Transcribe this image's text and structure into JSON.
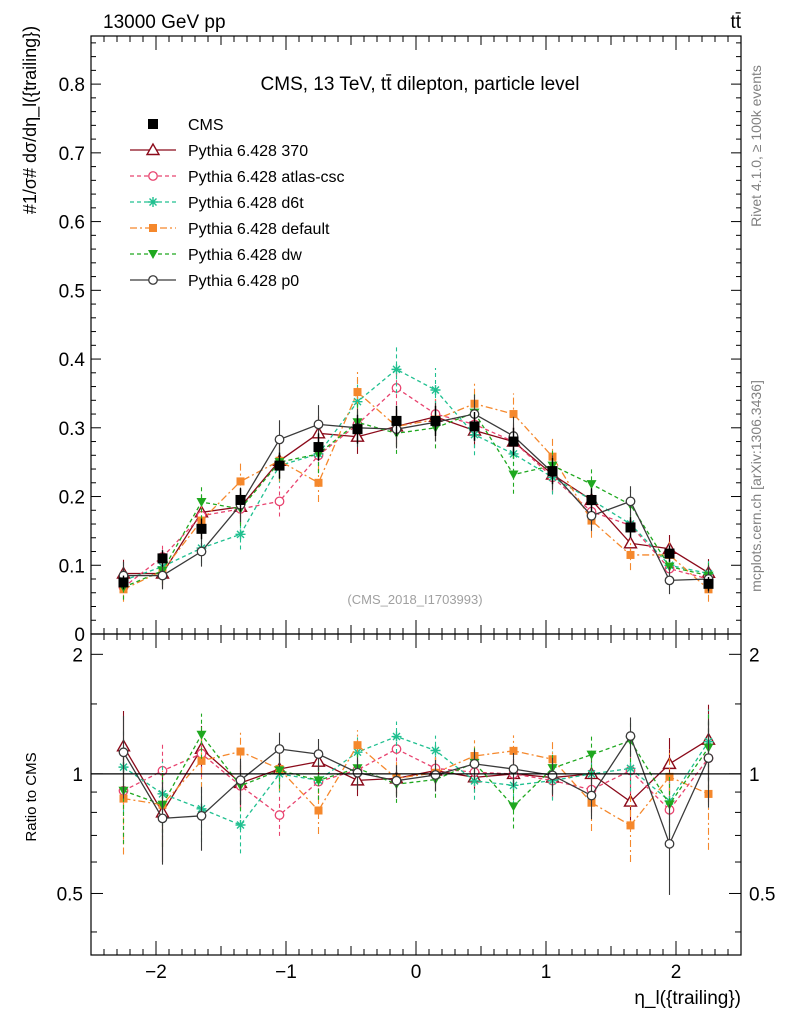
{
  "header": {
    "left": "13000 GeV pp",
    "right": "tt̄"
  },
  "side_labels": {
    "rivet": "Rivet 4.1.0, ≥ 100k events",
    "mcplots": "mcplots.cern.ch [arXiv:1306.3436]"
  },
  "chart_data": {
    "type": "scatter",
    "title": "CMS, 13 TeV, tt̄ dilepton, particle level",
    "watermark": "(CMS_2018_I1703993)",
    "ylabel": "#1/σ# dσ/dη_l({trailing})",
    "xlabel": "η_l({trailing})",
    "ratio_ylabel": "Ratio to CMS",
    "xlim": [
      -2.5,
      2.5
    ],
    "ylim": [
      0,
      0.87
    ],
    "ratio_ylim": [
      0.35,
      2.25
    ],
    "x_ticks": [
      -2,
      -1,
      0,
      1,
      2
    ],
    "x_tick_labels": [
      "−2",
      "−1",
      "0",
      "1",
      "2"
    ],
    "y_ticks": [
      0,
      0.1,
      0.2,
      0.3,
      0.4,
      0.5,
      0.6,
      0.7,
      0.8
    ],
    "y_tick_labels": [
      "0",
      "0.1",
      "0.2",
      "0.3",
      "0.4",
      "0.5",
      "0.6",
      "0.7",
      "0.8"
    ],
    "ratio_ticks": [
      0.5,
      1,
      2
    ],
    "ratio_tick_labels": [
      "0.5",
      "1",
      "2"
    ],
    "x": [
      -2.25,
      -1.95,
      -1.65,
      -1.35,
      -1.05,
      -0.75,
      -0.45,
      -0.15,
      0.15,
      0.45,
      0.75,
      1.05,
      1.35,
      1.65,
      1.95,
      2.25
    ],
    "data": {
      "name": "CMS",
      "color": "#000000",
      "values": [
        0.075,
        0.11,
        0.153,
        0.195,
        0.245,
        0.272,
        0.298,
        0.31,
        0.31,
        0.302,
        0.28,
        0.237,
        0.195,
        0.155,
        0.117,
        0.073
      ],
      "errors": [
        0.01,
        0.012,
        0.015,
        0.017,
        0.019,
        0.02,
        0.021,
        0.022,
        0.022,
        0.021,
        0.02,
        0.019,
        0.017,
        0.015,
        0.012,
        0.01
      ]
    },
    "series": [
      {
        "name": "Pythia 6.428 370",
        "color": "#8b0a1a",
        "dash": "",
        "marker": "triangle-open",
        "values": [
          0.088,
          0.088,
          0.177,
          0.185,
          0.252,
          0.292,
          0.287,
          0.302,
          0.316,
          0.296,
          0.28,
          0.232,
          0.195,
          0.132,
          0.124,
          0.089
        ],
        "errors": [
          0.02,
          0.022,
          0.025,
          0.025,
          0.025,
          0.025,
          0.025,
          0.025,
          0.025,
          0.025,
          0.025,
          0.025,
          0.025,
          0.02,
          0.02,
          0.02
        ]
      },
      {
        "name": "Pythia 6.428 atlas-csc",
        "color": "#e8436f",
        "dash": "4,3",
        "marker": "circle-open",
        "values": [
          0.068,
          0.112,
          0.172,
          0.182,
          0.193,
          0.26,
          0.305,
          0.358,
          0.32,
          0.305,
          0.28,
          0.228,
          0.178,
          0.158,
          0.095,
          0.08
        ],
        "errors": [
          0.018,
          0.02,
          0.022,
          0.023,
          0.022,
          0.025,
          0.025,
          0.025,
          0.025,
          0.025,
          0.025,
          0.024,
          0.022,
          0.02,
          0.018,
          0.018
        ]
      },
      {
        "name": "Pythia 6.428 d6t",
        "color": "#20c090",
        "dash": "4,3",
        "marker": "star",
        "values": [
          0.078,
          0.098,
          0.125,
          0.145,
          0.245,
          0.262,
          0.338,
          0.385,
          0.355,
          0.29,
          0.262,
          0.228,
          0.195,
          0.16,
          0.1,
          0.088
        ],
        "errors": [
          0.018,
          0.02,
          0.022,
          0.022,
          0.025,
          0.028,
          0.032,
          0.035,
          0.032,
          0.03,
          0.028,
          0.025,
          0.022,
          0.02,
          0.018,
          0.018
        ]
      },
      {
        "name": "Pythia 6.428 default",
        "color": "#f5882c",
        "dash": "7,3,2,3",
        "marker": "square",
        "values": [
          0.065,
          0.092,
          0.165,
          0.222,
          0.252,
          0.22,
          0.352,
          0.302,
          0.312,
          0.335,
          0.32,
          0.258,
          0.165,
          0.115,
          0.115,
          0.065
        ],
        "errors": [
          0.018,
          0.02,
          0.025,
          0.028,
          0.03,
          0.028,
          0.032,
          0.03,
          0.03,
          0.032,
          0.03,
          0.028,
          0.025,
          0.022,
          0.02,
          0.018
        ]
      },
      {
        "name": "Pythia 6.428 dw",
        "color": "#1fa81f",
        "dash": "4,3",
        "marker": "triangle-down",
        "values": [
          0.068,
          0.092,
          0.192,
          0.182,
          0.25,
          0.262,
          0.308,
          0.292,
          0.3,
          0.322,
          0.232,
          0.245,
          0.218,
          0.188,
          0.098,
          0.085
        ],
        "errors": [
          0.018,
          0.02,
          0.025,
          0.025,
          0.025,
          0.028,
          0.03,
          0.03,
          0.03,
          0.03,
          0.028,
          0.025,
          0.025,
          0.022,
          0.02,
          0.018
        ]
      },
      {
        "name": "Pythia 6.428 p0",
        "color": "#3a3a3a",
        "dash": "",
        "marker": "circle-open",
        "values": [
          0.085,
          0.085,
          0.12,
          0.188,
          0.283,
          0.305,
          0.3,
          0.298,
          0.308,
          0.32,
          0.288,
          0.235,
          0.172,
          0.193,
          0.078,
          0.08
        ],
        "errors": [
          0.02,
          0.02,
          0.022,
          0.025,
          0.028,
          0.028,
          0.028,
          0.028,
          0.028,
          0.028,
          0.028,
          0.025,
          0.022,
          0.022,
          0.02,
          0.02
        ]
      }
    ]
  }
}
